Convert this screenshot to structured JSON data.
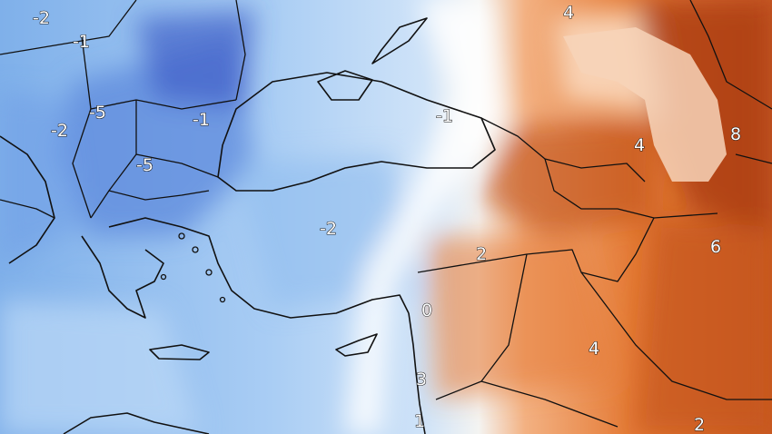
{
  "map": {
    "type": "temperature anomaly field",
    "colors": {
      "cold_deep": "#3f5fc8",
      "cold": "#6f9fe6",
      "cool": "#a9cdf4",
      "neutral": "#f7f7f7",
      "warm_light": "#f6c39c",
      "warm": "#ec8a47",
      "hot": "#d2601e",
      "very_hot": "#9e3310"
    },
    "labels": [
      "-2",
      "-1",
      "-5",
      "-2",
      "-1",
      "-5",
      "-1",
      "-2",
      "4",
      "4",
      "8",
      "6",
      "2",
      "0",
      "4",
      "3",
      "1",
      "2"
    ]
  }
}
